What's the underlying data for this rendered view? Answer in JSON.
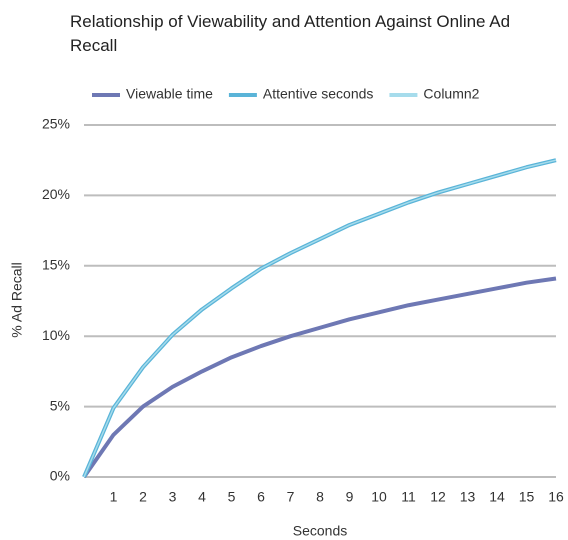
{
  "chart_data": {
    "type": "line",
    "title": "Relationship of Viewability and Attention Against Online Ad Recall",
    "x_label": "Seconds",
    "y_label": "% Ad Recall",
    "x": [
      0,
      1,
      2,
      3,
      4,
      5,
      6,
      7,
      8,
      9,
      10,
      11,
      12,
      13,
      14,
      15,
      16
    ],
    "series": [
      {
        "name": "Viewable time",
        "color": "#6e78b4",
        "values": [
          0,
          3.0,
          5.0,
          6.4,
          7.5,
          8.5,
          9.3,
          10.0,
          10.6,
          11.2,
          11.7,
          12.2,
          12.6,
          13.0,
          13.4,
          13.8,
          14.1
        ]
      },
      {
        "name": "Attentive seconds",
        "color": "#5ab4d8",
        "values": [
          0,
          4.9,
          7.8,
          10.1,
          11.9,
          13.4,
          14.8,
          15.9,
          16.9,
          17.9,
          18.7,
          19.5,
          20.2,
          20.8,
          21.4,
          22.0,
          22.5
        ]
      },
      {
        "name": "Column2",
        "color": "#a6dcec",
        "values": [
          0,
          4.9,
          7.8,
          10.1,
          11.9,
          13.4,
          14.8,
          15.9,
          16.9,
          17.9,
          18.7,
          19.5,
          20.2,
          20.8,
          21.4,
          22.0,
          22.5
        ]
      }
    ],
    "xlim": [
      0,
      16
    ],
    "xticks": [
      1,
      2,
      3,
      4,
      5,
      6,
      7,
      8,
      9,
      10,
      11,
      12,
      13,
      14,
      15,
      16
    ],
    "ylim": [
      0,
      25
    ],
    "yticks": [
      {
        "value": 0,
        "label": "0%"
      },
      {
        "value": 5,
        "label": "5%"
      },
      {
        "value": 10,
        "label": "10%"
      },
      {
        "value": 15,
        "label": "15%"
      },
      {
        "value": 20,
        "label": "20%"
      },
      {
        "value": 25,
        "label": "25%"
      }
    ],
    "grid": true,
    "legend": "top"
  }
}
